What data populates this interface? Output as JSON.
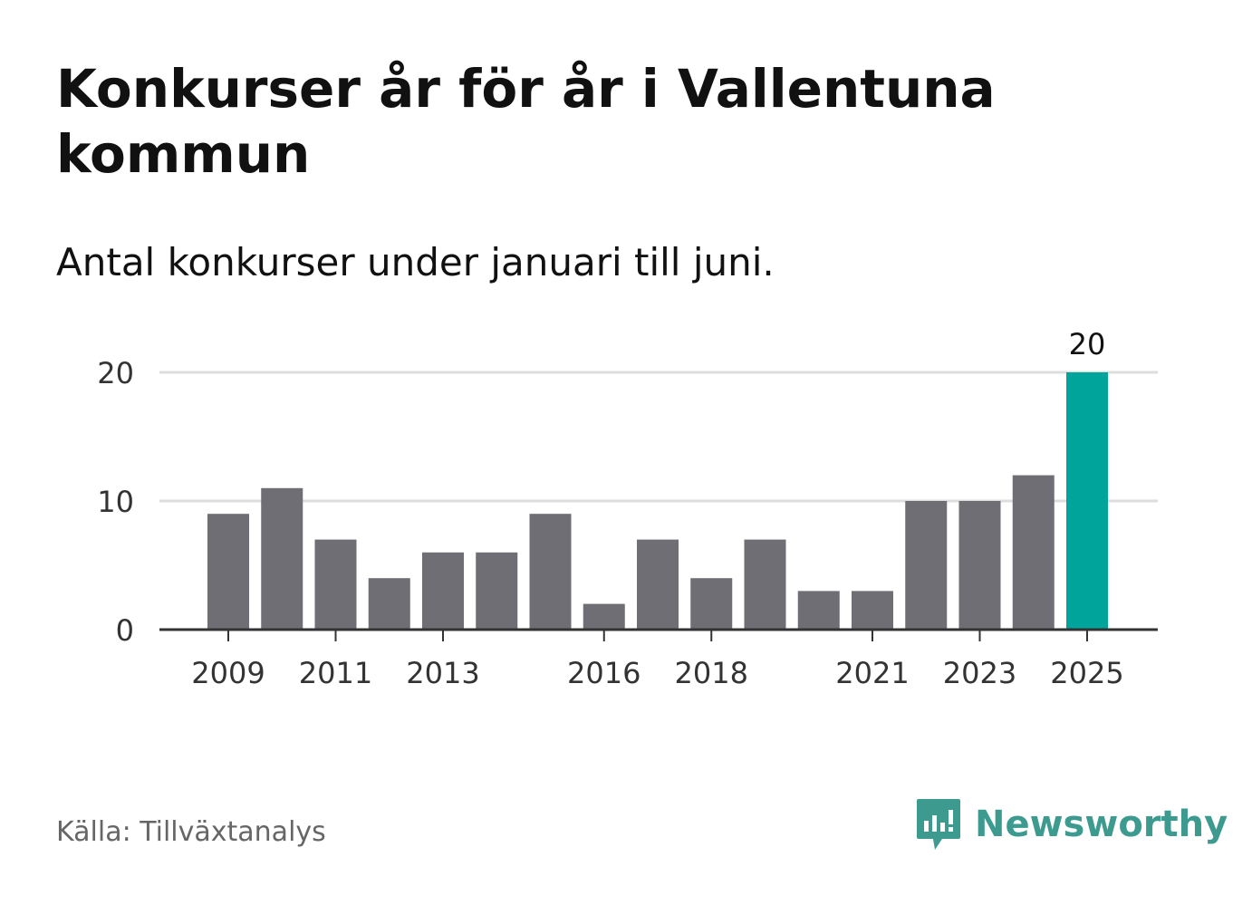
{
  "header": {
    "title": "Konkurser år för år i Vallentuna kommun",
    "subtitle": "Antal konkurser under januari till juni."
  },
  "footer": {
    "source": "Källa: Tillväxtanalys",
    "brand": "Newsworthy"
  },
  "colors": {
    "bar": "#6f6e74",
    "highlight": "#00a49a",
    "grid": "#dddddd",
    "axis": "#333333",
    "brand": "#3c9a8f"
  },
  "chart_data": {
    "type": "bar",
    "categories": [
      "2009",
      "2010",
      "2011",
      "2012",
      "2013",
      "2014",
      "2015",
      "2016",
      "2017",
      "2018",
      "2019",
      "2020",
      "2021",
      "2022",
      "2023",
      "2024",
      "2025"
    ],
    "values": [
      9,
      11,
      7,
      4,
      6,
      6,
      9,
      2,
      7,
      4,
      7,
      3,
      3,
      10,
      10,
      12,
      20
    ],
    "x_tick_labels": [
      "2009",
      "2011",
      "2013",
      "2016",
      "2018",
      "2021",
      "2023",
      "2025"
    ],
    "y_ticks": [
      0,
      10,
      20
    ],
    "ylim": [
      0,
      20
    ],
    "highlight_category": "2025",
    "highlight_label": "20",
    "grid": true,
    "legend": "none"
  }
}
